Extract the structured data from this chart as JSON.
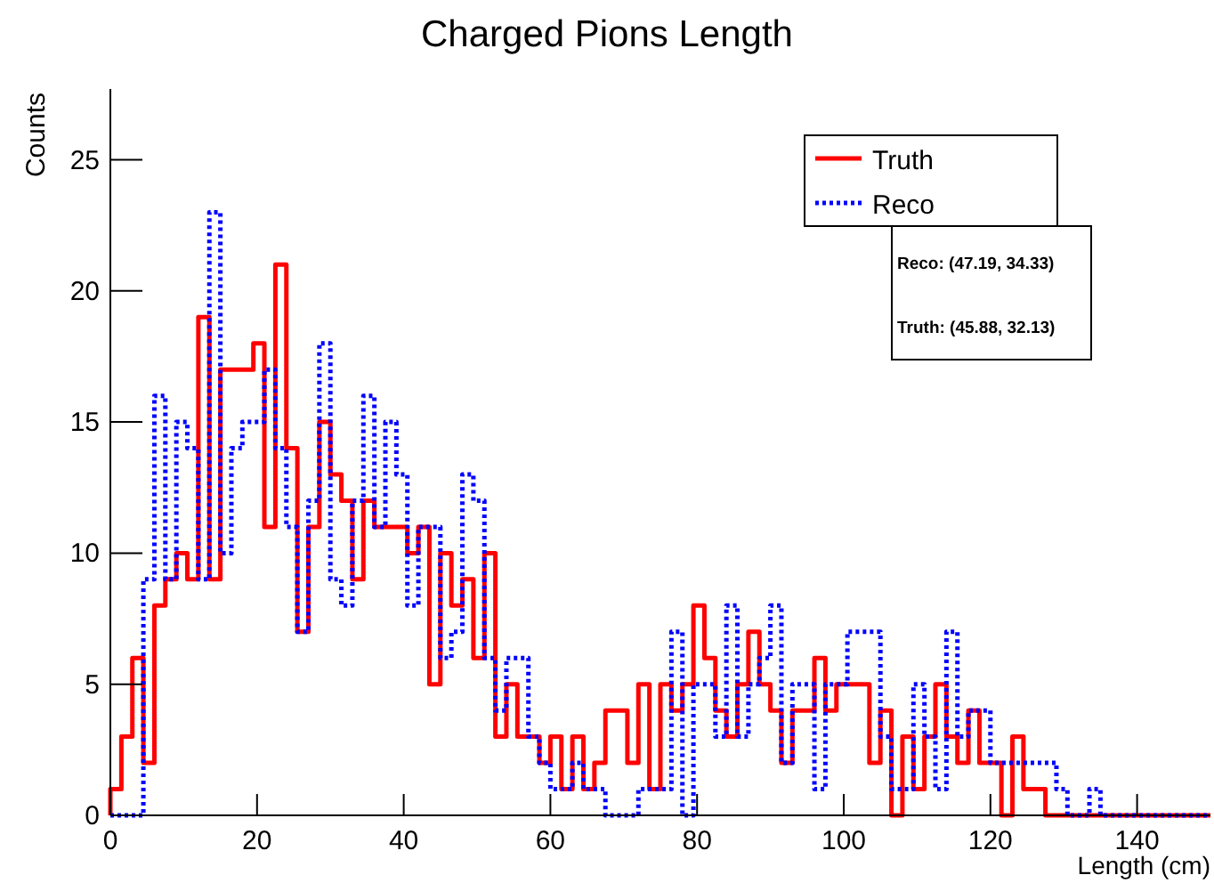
{
  "chart_data": {
    "type": "histogram",
    "title": "Charged Pions Length",
    "xlabel": "Length (cm)",
    "ylabel": "Counts",
    "bins": [
      0,
      1.5,
      3,
      4.5,
      6,
      7.5,
      9,
      10.5,
      12,
      13.5,
      15,
      16.5,
      18,
      19.5,
      21,
      22.5,
      24,
      25.5,
      27,
      28.5,
      30,
      31.5,
      33,
      34.5,
      36,
      37.5,
      39,
      40.5,
      42,
      43.5,
      45,
      46.5,
      48,
      49.5,
      51,
      52.5,
      54,
      55.5,
      57,
      58.5,
      60,
      61.5,
      63,
      64.5,
      66,
      67.5,
      69,
      70.5,
      72,
      73.5,
      75,
      76.5,
      78,
      79.5,
      81,
      82.5,
      84,
      85.5,
      87,
      88.5,
      90,
      91.5,
      93,
      94.5,
      96,
      97.5,
      99,
      100.5,
      102,
      103.5,
      105,
      106.5,
      108,
      109.5,
      111,
      112.5,
      114,
      115.5,
      117,
      118.5,
      120,
      121.5,
      123,
      124.5,
      126,
      127.5,
      129,
      130.5,
      132,
      133.5,
      135,
      136.5,
      138,
      139.5,
      141,
      142.5,
      144,
      145.5,
      147,
      148.5,
      150
    ],
    "series": [
      {
        "name": "Truth",
        "color": "#ff0000",
        "line_style": "solid",
        "values": [
          1,
          3,
          6,
          2,
          8,
          9,
          10,
          9,
          19,
          9,
          17,
          17,
          17,
          18,
          11,
          21,
          14,
          7,
          11,
          15,
          13,
          12,
          9,
          12,
          11,
          11,
          11,
          10,
          11,
          5,
          10,
          8,
          9,
          6,
          10,
          3,
          5,
          3,
          3,
          2,
          3,
          1,
          3,
          1,
          2,
          4,
          4,
          2,
          5,
          1,
          5,
          4,
          5,
          8,
          6,
          4,
          3,
          5,
          7,
          5,
          4,
          2,
          4,
          4,
          6,
          4,
          5,
          5,
          5,
          2,
          4,
          0,
          3,
          1,
          3,
          5,
          3,
          2,
          4,
          2,
          2,
          0,
          3,
          1,
          1,
          0,
          0,
          0,
          0,
          0,
          0,
          0,
          0,
          0,
          0,
          0,
          0,
          0,
          0,
          0
        ]
      },
      {
        "name": "Reco",
        "color": "#0000ff",
        "line_style": "dotted",
        "values": [
          0,
          0,
          0,
          9,
          16,
          9,
          15,
          14,
          9,
          23,
          10,
          14,
          15,
          15,
          17,
          14,
          11,
          7,
          12,
          18,
          9,
          8,
          12,
          16,
          11,
          15,
          13,
          8,
          11,
          11,
          6,
          7,
          13,
          12,
          6,
          4,
          6,
          6,
          3,
          2,
          1,
          1,
          2,
          1,
          1,
          0,
          0,
          0,
          1,
          1,
          1,
          7,
          0,
          5,
          5,
          3,
          8,
          3,
          5,
          6,
          8,
          2,
          5,
          5,
          1,
          5,
          5,
          7,
          7,
          7,
          3,
          1,
          1,
          5,
          3,
          1,
          7,
          3,
          4,
          4,
          2,
          2,
          2,
          2,
          2,
          2,
          1,
          0,
          0,
          1,
          0,
          0,
          0,
          0,
          0,
          0,
          0,
          0,
          0,
          0
        ]
      }
    ],
    "xlim": [
      0,
      150
    ],
    "xticks": [
      0,
      20,
      40,
      60,
      80,
      100,
      120,
      140
    ],
    "ylim": [
      0,
      27.7
    ],
    "yticks": [
      0,
      5,
      10,
      15,
      20,
      25
    ],
    "grid": false,
    "legend": "top right",
    "annotations": [
      "Reco: (47.19, 34.33)",
      "Truth: (45.88, 32.13)"
    ]
  }
}
